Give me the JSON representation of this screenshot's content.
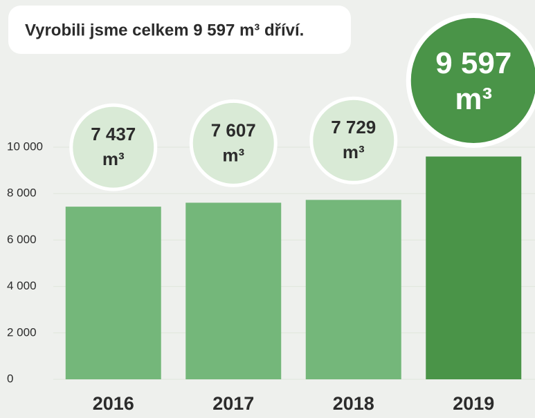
{
  "chart_data": {
    "type": "bar",
    "title": "Vyrobili jsme celkem 9 597 m³ dříví.",
    "categories": [
      "2016",
      "2017",
      "2018",
      "2019"
    ],
    "values": [
      7437,
      7607,
      7729,
      9597
    ],
    "value_labels": [
      "7 437",
      "7 607",
      "7 729",
      "9 597"
    ],
    "unit": "m³",
    "colors": [
      "#74b77a",
      "#74b77a",
      "#74b77a",
      "#4a9448"
    ],
    "ylim": [
      0,
      10000
    ],
    "yticks": [
      0,
      {
        "value": 2000,
        "label": "2 000"
      },
      {
        "value": 4000,
        "label": "4 000"
      },
      {
        "value": 6000,
        "label": "6 000"
      },
      {
        "value": 8000,
        "label": "8 000"
      },
      {
        "value": 10000,
        "label": "10 000"
      }
    ],
    "grid": true
  }
}
